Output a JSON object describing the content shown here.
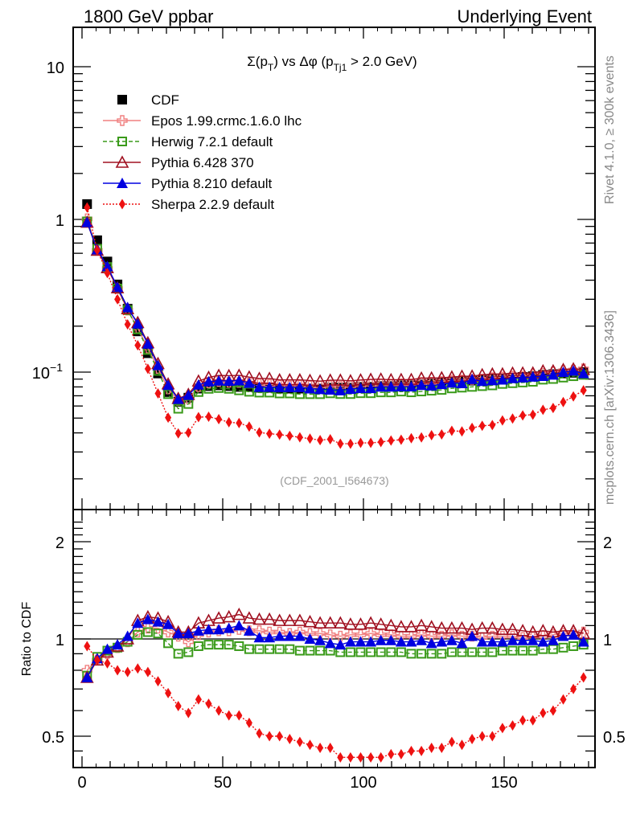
{
  "header": {
    "left": "1800 GeV ppbar",
    "right": "Underlying Event"
  },
  "side_labels": {
    "rivet": "Rivet 4.1.0, ≥ 300k events",
    "mcplots": "mcplots.cern.ch [arXiv:1306.3436]"
  },
  "chart_data": {
    "type": "scatter",
    "title_parts": {
      "main": "Σ(p",
      "sub1": "T",
      "mid": ") vs Δφ (p",
      "sub2": "Tj1",
      "end": " > 2.0 GeV)"
    },
    "analysis_id": "(CDF_2001_I564673)",
    "xlabel": "",
    "ylabel": "",
    "ratio_ylabel": "Ratio to CDF",
    "xlim": [
      -3,
      182
    ],
    "ylim": [
      0.02,
      17
    ],
    "yscale": "log",
    "ratio_ylim": [
      0.42,
      2.4
    ],
    "ratio_yscale": "log",
    "x_ticks": [
      0,
      50,
      100,
      150
    ],
    "x_tick_labels": [
      "0",
      "50",
      "100",
      "150"
    ],
    "y_ticks": [
      10,
      1,
      0.1
    ],
    "y_tick_labels": [
      "10",
      "1",
      "10^-1"
    ],
    "ratio_y_ticks": [
      2,
      1,
      0.5
    ],
    "ratio_y_tick_labels": [
      "2",
      "1",
      "0.5"
    ],
    "legend_position": "top-left",
    "x": [
      1.8,
      5.4,
      9.0,
      12.6,
      16.2,
      19.8,
      23.4,
      27.0,
      30.6,
      34.2,
      37.8,
      41.4,
      45.0,
      48.6,
      52.2,
      55.8,
      59.4,
      63.0,
      66.6,
      70.2,
      73.8,
      77.4,
      81.0,
      84.6,
      88.2,
      91.8,
      95.4,
      99.0,
      102.6,
      106.2,
      109.8,
      113.4,
      117.0,
      120.6,
      124.2,
      127.8,
      131.4,
      135.0,
      138.6,
      142.2,
      145.8,
      149.4,
      153.0,
      156.6,
      160.2,
      163.8,
      167.4,
      171.0,
      174.6,
      178.2
    ],
    "series": [
      {
        "name": "CDF",
        "color": "#000000",
        "marker": "filled-square",
        "line": "none",
        "values": [
          1.26,
          0.73,
          0.53,
          0.375,
          0.26,
          0.185,
          0.133,
          0.098,
          0.074,
          0.064,
          0.068,
          0.078,
          0.081,
          0.082,
          0.081,
          0.08,
          0.08,
          0.079,
          0.079,
          0.078,
          0.078,
          0.078,
          0.078,
          0.078,
          0.079,
          0.079,
          0.079,
          0.08,
          0.08,
          0.081,
          0.081,
          0.082,
          0.082,
          0.083,
          0.084,
          0.085,
          0.086,
          0.087,
          0.088,
          0.089,
          0.09,
          0.091,
          0.092,
          0.093,
          0.094,
          0.096,
          0.097,
          0.098,
          0.099,
          0.1
        ],
        "ratio": null
      },
      {
        "name": "Epos 1.99.crmc.1.6.0 lhc",
        "color": "#f08080",
        "marker": "open-cross",
        "line": "solid",
        "ratio": [
          0.8,
          0.86,
          0.9,
          0.94,
          0.98,
          1.05,
          1.08,
          1.08,
          1.05,
          1.02,
          0.98,
          1.03,
          1.05,
          1.06,
          1.06,
          1.07,
          1.06,
          1.06,
          1.05,
          1.05,
          1.04,
          1.05,
          1.04,
          1.04,
          1.03,
          1.02,
          1.03,
          1.03,
          1.04,
          1.03,
          1.03,
          1.02,
          1.02,
          1.03,
          1.02,
          1.02,
          1.03,
          1.02,
          1.02,
          1.01,
          1.02,
          1.02,
          1.02,
          1.01,
          1.02,
          1.02,
          1.03,
          1.04,
          1.04,
          1.05
        ]
      },
      {
        "name": "Herwig 7.2.1 default",
        "color": "#3a9a1a",
        "marker": "open-square",
        "line": "dashed",
        "ratio": [
          0.77,
          0.88,
          0.92,
          0.94,
          0.98,
          1.03,
          1.05,
          1.04,
          0.97,
          0.9,
          0.91,
          0.95,
          0.96,
          0.96,
          0.96,
          0.95,
          0.93,
          0.93,
          0.93,
          0.93,
          0.93,
          0.92,
          0.92,
          0.92,
          0.92,
          0.91,
          0.91,
          0.91,
          0.91,
          0.91,
          0.91,
          0.91,
          0.9,
          0.9,
          0.9,
          0.9,
          0.91,
          0.91,
          0.91,
          0.91,
          0.91,
          0.92,
          0.92,
          0.92,
          0.92,
          0.93,
          0.93,
          0.94,
          0.95,
          0.96
        ]
      },
      {
        "name": "Pythia 6.428 370",
        "color": "#a01020",
        "marker": "open-triangle",
        "line": "solid",
        "ratio": [
          0.76,
          0.86,
          0.91,
          0.95,
          1.0,
          1.14,
          1.17,
          1.16,
          1.13,
          1.05,
          1.05,
          1.12,
          1.14,
          1.16,
          1.17,
          1.19,
          1.16,
          1.15,
          1.15,
          1.14,
          1.14,
          1.14,
          1.13,
          1.12,
          1.12,
          1.12,
          1.11,
          1.11,
          1.12,
          1.11,
          1.1,
          1.09,
          1.09,
          1.1,
          1.09,
          1.08,
          1.08,
          1.08,
          1.07,
          1.08,
          1.08,
          1.07,
          1.07,
          1.06,
          1.05,
          1.06,
          1.05,
          1.06,
          1.06,
          1.04
        ]
      },
      {
        "name": "Pythia 8.210 default",
        "color": "#0000e0",
        "marker": "filled-triangle",
        "line": "solid",
        "ratio": [
          0.76,
          0.87,
          0.93,
          0.96,
          1.02,
          1.12,
          1.15,
          1.13,
          1.11,
          1.04,
          1.04,
          1.06,
          1.07,
          1.07,
          1.08,
          1.1,
          1.06,
          1.01,
          1.01,
          1.02,
          1.02,
          1.02,
          1.0,
          0.99,
          0.97,
          0.96,
          0.98,
          0.98,
          0.98,
          0.99,
          0.99,
          0.98,
          0.98,
          0.99,
          0.97,
          0.98,
          0.99,
          0.97,
          1.02,
          0.98,
          0.98,
          0.98,
          0.99,
          0.99,
          0.99,
          0.98,
          0.99,
          1.02,
          1.03,
          0.98
        ]
      },
      {
        "name": "Sherpa 2.2.9 default",
        "color": "#ee1111",
        "marker": "filled-diamond",
        "line": "dotted",
        "ratio": [
          0.95,
          0.86,
          0.84,
          0.8,
          0.79,
          0.81,
          0.79,
          0.74,
          0.68,
          0.62,
          0.59,
          0.65,
          0.63,
          0.6,
          0.58,
          0.58,
          0.55,
          0.51,
          0.5,
          0.5,
          0.49,
          0.48,
          0.47,
          0.46,
          0.46,
          0.43,
          0.43,
          0.43,
          0.43,
          0.43,
          0.44,
          0.44,
          0.45,
          0.45,
          0.46,
          0.46,
          0.48,
          0.47,
          0.49,
          0.5,
          0.5,
          0.53,
          0.54,
          0.56,
          0.56,
          0.59,
          0.6,
          0.65,
          0.7,
          0.76
        ]
      }
    ]
  }
}
